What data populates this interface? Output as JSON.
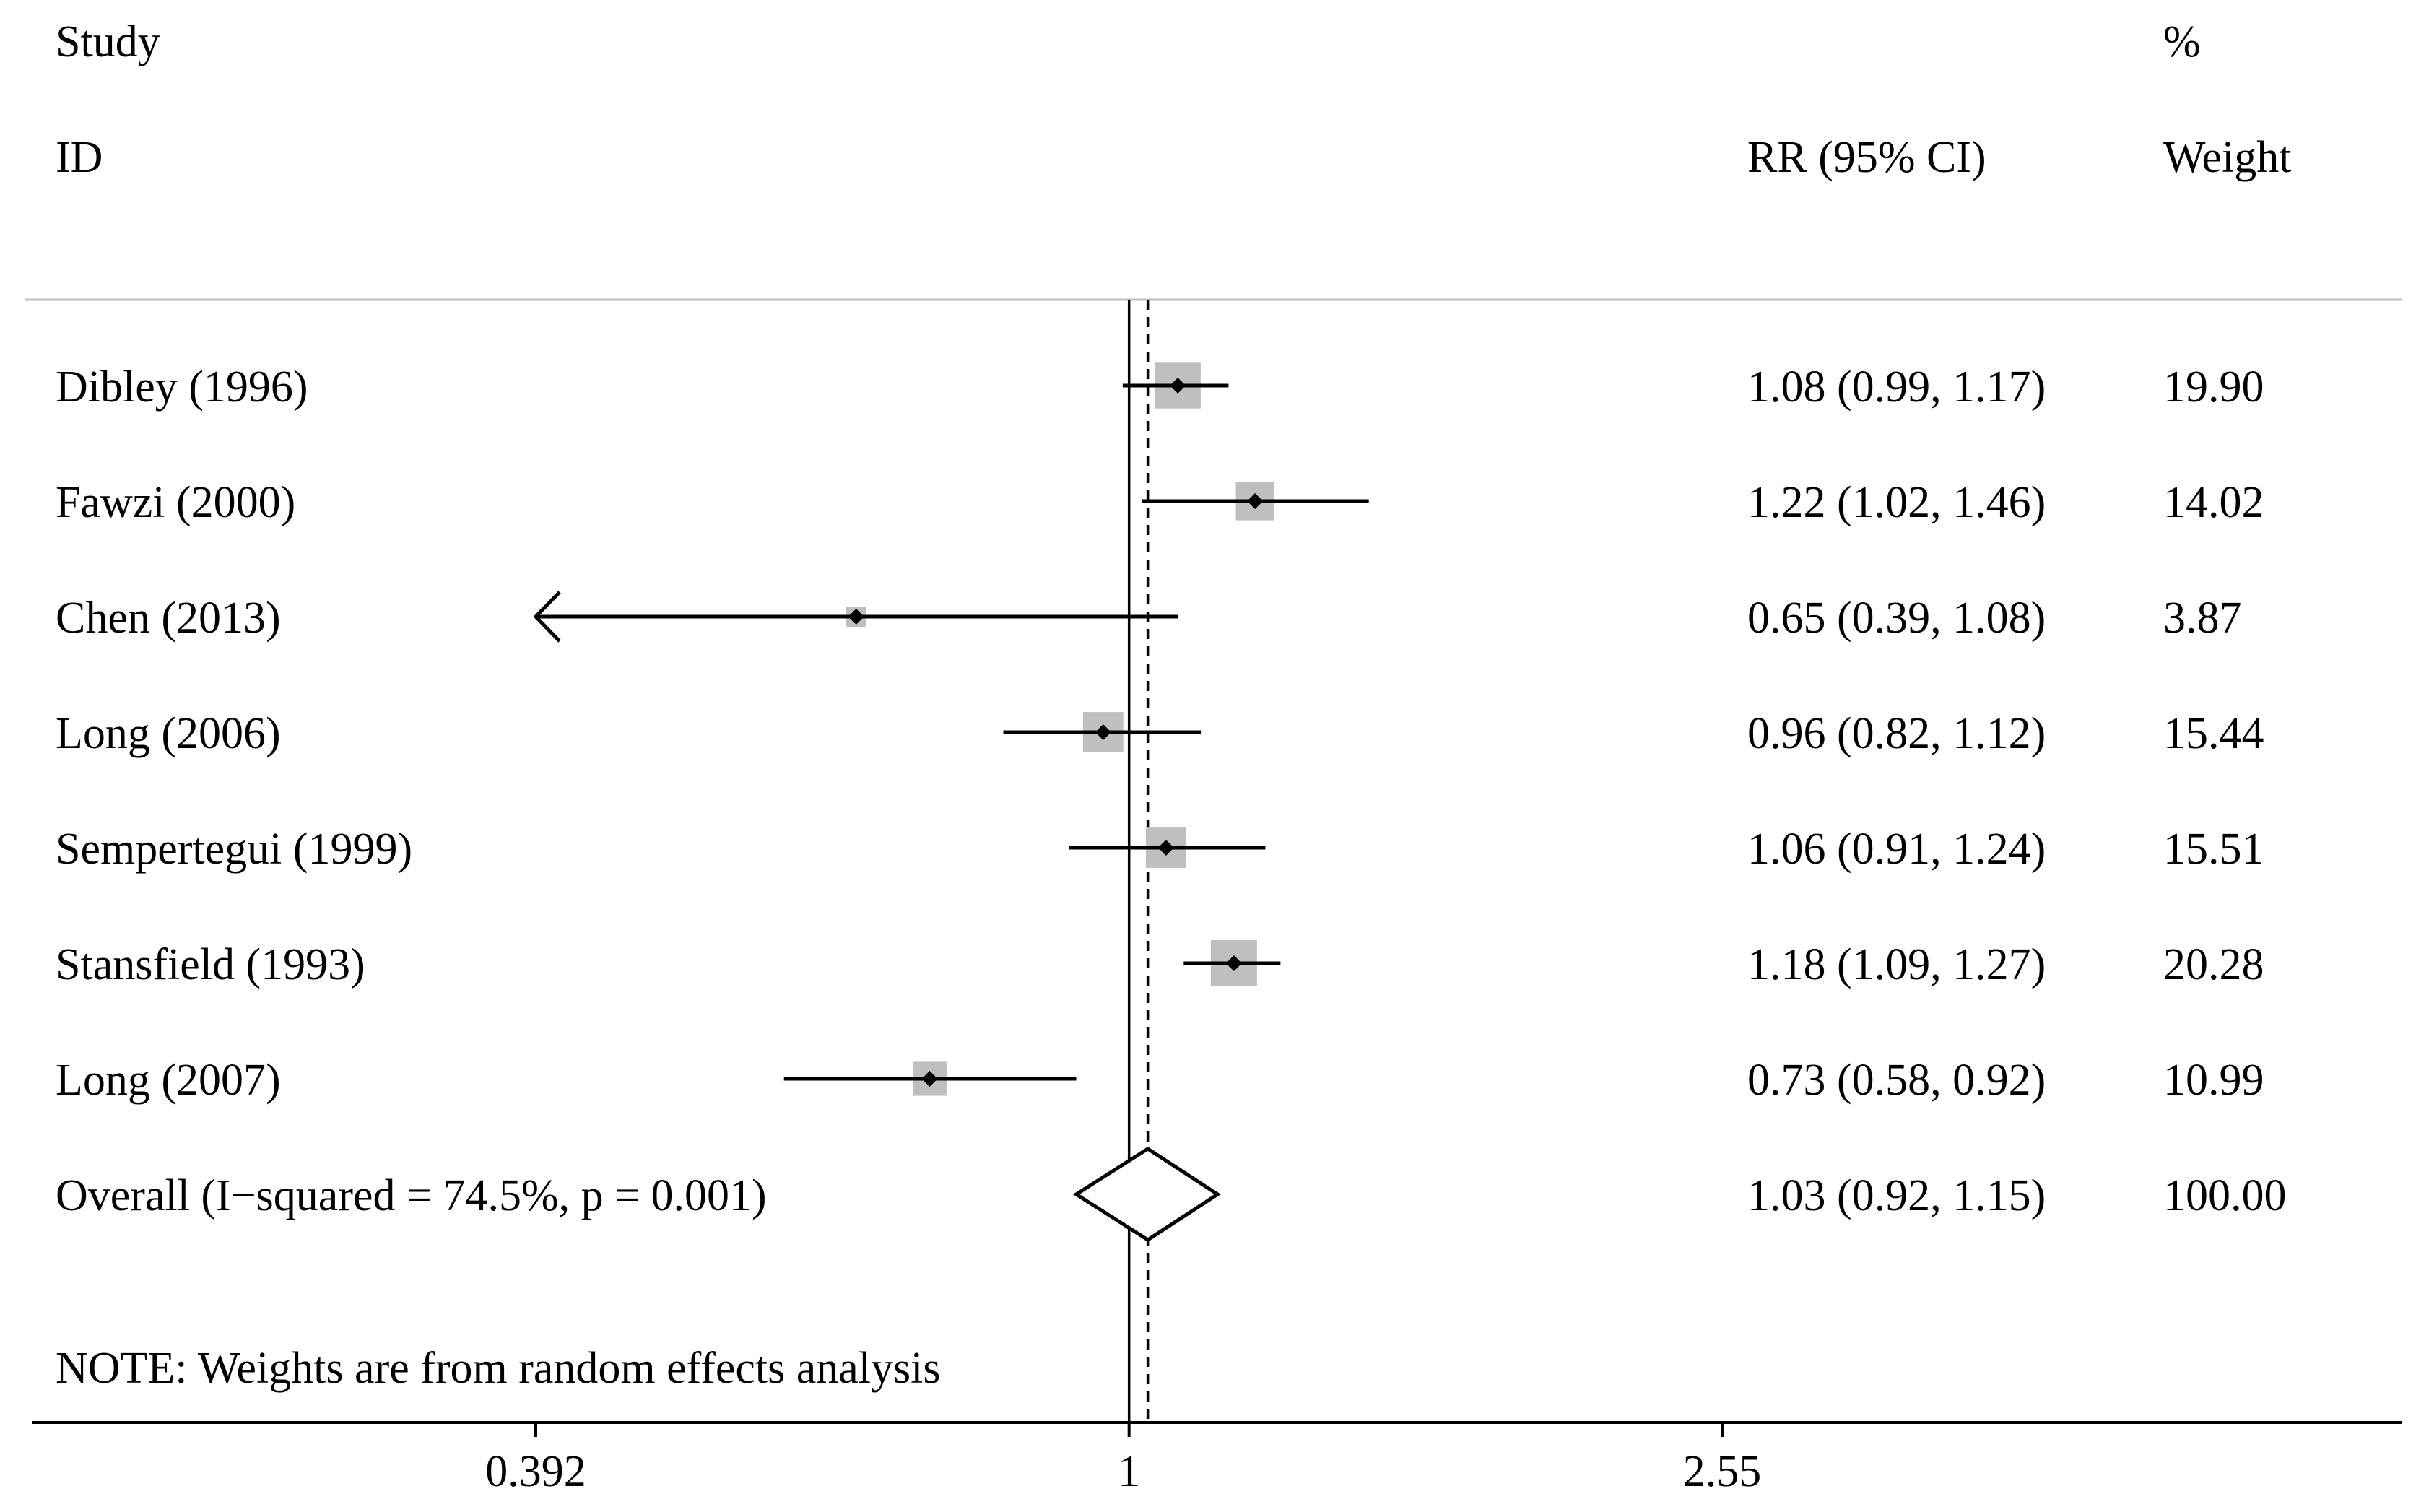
{
  "header": {
    "study_label": "Study",
    "id_label": "ID",
    "rr_label": "RR (95% CI)",
    "percent_label": "%",
    "weight_label": "Weight"
  },
  "note": "NOTE: Weights are from random effects analysis",
  "colors": {
    "box": "#bfbfbf",
    "line": "#000000",
    "divider": "#bdbdbd"
  },
  "chart_data": {
    "type": "forest",
    "title": "",
    "xlabel": "",
    "ylabel": "",
    "x_scale": "log",
    "xlim": [
      0.392,
      2.55
    ],
    "xticks": [
      0.392,
      1,
      2.55
    ],
    "xtick_labels": [
      "0.392",
      "1",
      "2.55"
    ],
    "null_line": 1,
    "overall_line": 1.03,
    "studies": [
      {
        "name": "Dibley (1996)",
        "rr": 1.08,
        "lo": 0.99,
        "hi": 1.17,
        "rr_text": "1.08 (0.99, 1.17)",
        "weight": 19.9,
        "weight_text": "19.90"
      },
      {
        "name": "Fawzi (2000)",
        "rr": 1.22,
        "lo": 1.02,
        "hi": 1.46,
        "rr_text": "1.22 (1.02, 1.46)",
        "weight": 14.02,
        "weight_text": "14.02"
      },
      {
        "name": "Chen (2013)",
        "rr": 0.65,
        "lo": 0.39,
        "hi": 1.08,
        "rr_text": "0.65 (0.39, 1.08)",
        "weight": 3.87,
        "weight_text": "3.87"
      },
      {
        "name": "Long (2006)",
        "rr": 0.96,
        "lo": 0.82,
        "hi": 1.12,
        "rr_text": "0.96 (0.82, 1.12)",
        "weight": 15.44,
        "weight_text": "15.44"
      },
      {
        "name": "Sempertegui (1999)",
        "rr": 1.06,
        "lo": 0.91,
        "hi": 1.24,
        "rr_text": "1.06 (0.91, 1.24)",
        "weight": 15.51,
        "weight_text": "15.51"
      },
      {
        "name": "Stansfield (1993)",
        "rr": 1.18,
        "lo": 1.09,
        "hi": 1.27,
        "rr_text": "1.18 (1.09, 1.27)",
        "weight": 20.28,
        "weight_text": "20.28"
      },
      {
        "name": "Long (2007)",
        "rr": 0.73,
        "lo": 0.58,
        "hi": 0.92,
        "rr_text": "0.73 (0.58, 0.92)",
        "weight": 10.99,
        "weight_text": "10.99"
      }
    ],
    "overall": {
      "name": "Overall  (I−squared = 74.5%, p = 0.001)",
      "rr": 1.03,
      "lo": 0.92,
      "hi": 1.15,
      "rr_text": "1.03 (0.92, 1.15)",
      "weight": 100.0,
      "weight_text": "100.00"
    }
  }
}
